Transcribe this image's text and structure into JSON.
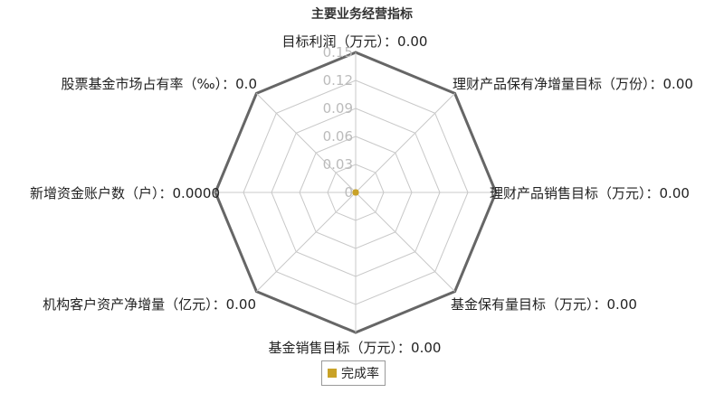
{
  "colors": {
    "outer_polygon": "#666666",
    "grid": "#c8c8c8",
    "tick_label": "#bbbbbb",
    "series": "#c9a227",
    "axis_label": "#222222"
  },
  "chart_data": {
    "type": "radar",
    "title": "主要业务经营指标",
    "axes": [
      "目标利润（万元）：0.00",
      "理财产品保有净增量目标（万份）：0.00",
      "理财产品销售目标（万元）：0.00",
      "基金保有量目标（万元）：0.00",
      "基金销售目标（万元）：0.00",
      "机构客户资产净增量（亿元）：0.00",
      "新增资金账户数（户）：0.0000",
      "股票基金市场占有率（‰）：0.0"
    ],
    "ticks": [
      "0",
      "0.03",
      "0.06",
      "0.09",
      "0.12",
      "0.15"
    ],
    "range": [
      0,
      0.15
    ],
    "grid": true,
    "legend": "bottom",
    "series": [
      {
        "name": "完成率",
        "values": [
          0,
          0,
          0,
          0,
          0,
          0,
          0,
          0
        ]
      }
    ]
  }
}
